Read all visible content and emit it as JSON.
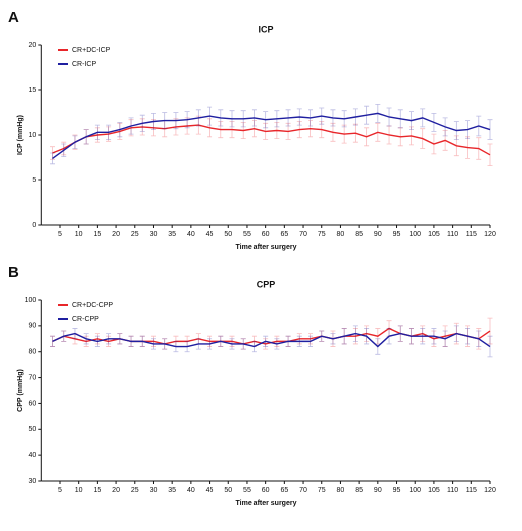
{
  "chart_data": [
    {
      "type": "line",
      "panel": "A",
      "title": "ICP",
      "xlabel": "Time after surgery",
      "ylabel": "ICP (mmHg)",
      "x": [
        3,
        6,
        9,
        12,
        15,
        18,
        21,
        24,
        27,
        30,
        33,
        36,
        39,
        42,
        45,
        48,
        51,
        54,
        57,
        60,
        63,
        66,
        69,
        72,
        75,
        78,
        81,
        84,
        87,
        90,
        93,
        96,
        99,
        102,
        105,
        108,
        111,
        114,
        117,
        120
      ],
      "xlim": [
        0,
        120
      ],
      "xticks": [
        5,
        10,
        15,
        20,
        25,
        30,
        35,
        40,
        45,
        50,
        55,
        60,
        65,
        70,
        75,
        80,
        85,
        90,
        95,
        100,
        105,
        110,
        115,
        120
      ],
      "ylim": [
        0,
        20
      ],
      "yticks": [
        0,
        5,
        10,
        15,
        20
      ],
      "series": [
        {
          "name": "CR+DC-ICP",
          "color": "#e8262a",
          "values": [
            8.0,
            8.5,
            9.2,
            9.8,
            10.0,
            10.1,
            10.4,
            10.8,
            10.9,
            10.8,
            10.7,
            10.9,
            11.0,
            11.1,
            10.8,
            10.6,
            10.6,
            10.5,
            10.7,
            10.4,
            10.5,
            10.4,
            10.6,
            10.7,
            10.6,
            10.3,
            10.1,
            10.2,
            9.8,
            10.3,
            10.0,
            9.8,
            9.9,
            9.6,
            9.0,
            9.4,
            8.8,
            8.6,
            8.5,
            7.8
          ],
          "errors": [
            0.7,
            0.7,
            0.8,
            0.8,
            0.8,
            0.8,
            0.9,
            0.9,
            0.9,
            0.9,
            0.9,
            0.9,
            0.9,
            1.0,
            1.0,
            0.9,
            0.9,
            0.9,
            0.9,
            0.9,
            0.9,
            0.9,
            0.9,
            0.9,
            0.9,
            1.0,
            1.0,
            1.0,
            1.0,
            1.0,
            1.0,
            1.0,
            1.0,
            1.1,
            1.1,
            1.1,
            1.1,
            1.2,
            1.2,
            1.2
          ]
        },
        {
          "name": "CR-ICP",
          "color": "#1f1fa0",
          "values": [
            7.4,
            8.3,
            9.2,
            9.8,
            10.3,
            10.3,
            10.6,
            11.0,
            11.3,
            11.5,
            11.6,
            11.6,
            11.7,
            11.9,
            12.1,
            11.9,
            11.8,
            11.8,
            11.9,
            11.7,
            11.8,
            11.9,
            12.0,
            11.9,
            12.1,
            11.9,
            11.8,
            12.0,
            12.2,
            12.4,
            12.0,
            11.8,
            11.6,
            11.9,
            11.4,
            10.9,
            10.5,
            10.6,
            11.0,
            10.6
          ],
          "errors": [
            0.6,
            0.7,
            0.7,
            0.8,
            0.8,
            0.8,
            0.8,
            0.9,
            0.9,
            0.9,
            0.9,
            0.9,
            0.9,
            0.9,
            1.0,
            0.9,
            0.9,
            0.9,
            0.9,
            0.9,
            0.9,
            0.9,
            0.9,
            0.9,
            0.9,
            0.9,
            0.9,
            0.9,
            1.0,
            1.0,
            1.0,
            1.0,
            1.0,
            1.0,
            1.0,
            1.0,
            1.0,
            1.0,
            1.1,
            1.1
          ]
        }
      ]
    },
    {
      "type": "line",
      "panel": "B",
      "title": "CPP",
      "xlabel": "Time after surgery",
      "ylabel": "CPP (mmHg)",
      "x": [
        3,
        6,
        9,
        12,
        15,
        18,
        21,
        24,
        27,
        30,
        33,
        36,
        39,
        42,
        45,
        48,
        51,
        54,
        57,
        60,
        63,
        66,
        69,
        72,
        75,
        78,
        81,
        84,
        87,
        90,
        93,
        96,
        99,
        102,
        105,
        108,
        111,
        114,
        117,
        120
      ],
      "xlim": [
        0,
        120
      ],
      "xticks": [
        5,
        10,
        15,
        20,
        25,
        30,
        35,
        40,
        45,
        50,
        55,
        60,
        65,
        70,
        75,
        80,
        85,
        90,
        95,
        100,
        105,
        110,
        115,
        120
      ],
      "ylim": [
        30,
        100
      ],
      "yticks": [
        30,
        40,
        50,
        60,
        70,
        80,
        90,
        100
      ],
      "series": [
        {
          "name": "CR+DC-CPP",
          "color": "#e8262a",
          "values": [
            84,
            86,
            85,
            84,
            85,
            84,
            85,
            84,
            84,
            84,
            83,
            84,
            84,
            85,
            84,
            84,
            84,
            83,
            84,
            83,
            84,
            84,
            85,
            85,
            86,
            85,
            86,
            86,
            87,
            86,
            89,
            87,
            86,
            87,
            85,
            86,
            87,
            86,
            85,
            88
          ],
          "errors": [
            2,
            2,
            2,
            2,
            2,
            2,
            2,
            2,
            2,
            2,
            2,
            2,
            2,
            2,
            2,
            2,
            2,
            2,
            2,
            2,
            2,
            2,
            2,
            2,
            2,
            3,
            3,
            3,
            3,
            3,
            3,
            3,
            3,
            3,
            3,
            4,
            4,
            4,
            4,
            5
          ]
        },
        {
          "name": "CR-CPP",
          "color": "#1f1fa0",
          "values": [
            84,
            86,
            87,
            85,
            84,
            85,
            85,
            84,
            84,
            83,
            83,
            82,
            82,
            83,
            83,
            84,
            83,
            83,
            82,
            84,
            83,
            84,
            84,
            84,
            86,
            85,
            86,
            87,
            86,
            82,
            86,
            87,
            86,
            86,
            86,
            85,
            87,
            86,
            85,
            82
          ],
          "errors": [
            2,
            2,
            2,
            2,
            2,
            2,
            2,
            2,
            2,
            2,
            2,
            2,
            2,
            2,
            2,
            2,
            2,
            2,
            2,
            2,
            2,
            2,
            2,
            2,
            2,
            2,
            3,
            3,
            3,
            3,
            3,
            3,
            3,
            3,
            3,
            3,
            3,
            3,
            3,
            4
          ]
        }
      ]
    }
  ]
}
